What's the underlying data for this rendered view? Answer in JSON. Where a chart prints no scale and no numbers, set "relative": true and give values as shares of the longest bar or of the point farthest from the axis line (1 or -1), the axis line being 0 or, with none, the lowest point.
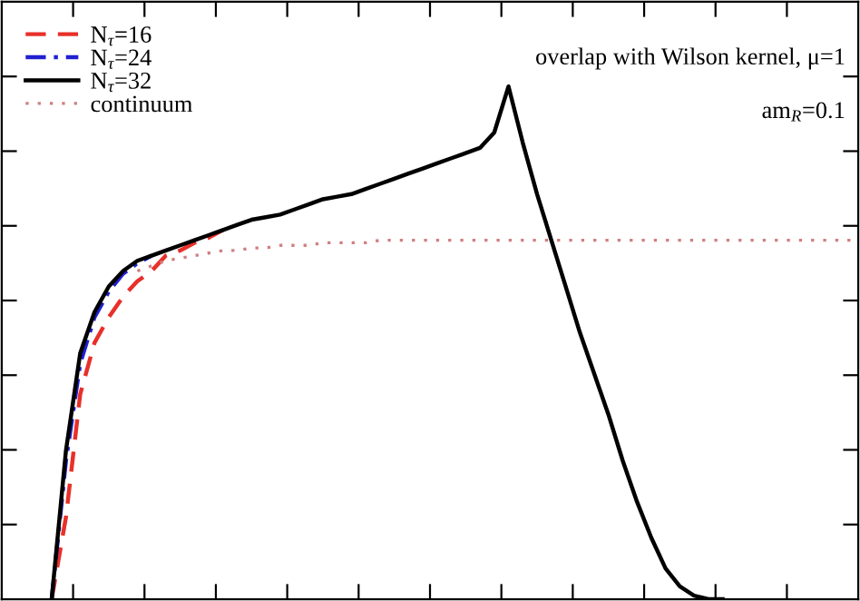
{
  "chart_data": {
    "type": "line",
    "relative": true,
    "legend": "top left",
    "grid": false,
    "categories": [
      null,
      null,
      null,
      null,
      null,
      null,
      null,
      null,
      null,
      null,
      null,
      null,
      null,
      null,
      null,
      null,
      null,
      null,
      null,
      null,
      null,
      null,
      null,
      null,
      null,
      null,
      null,
      null,
      null,
      null,
      null,
      null,
      null,
      null,
      null,
      null,
      null,
      null,
      null,
      null,
      null,
      null,
      null,
      null,
      null,
      null,
      null,
      null,
      null,
      null,
      null,
      null,
      null,
      null,
      null,
      null,
      null,
      null,
      null,
      null
    ],
    "annotations": [
      "overlap with Wilson kernel, μ=1",
      "am$_{R}$=0.1"
    ],
    "series": [
      {
        "name": "N$_{τ}$=16",
        "color": "#e8302a",
        "line_style": "dashed",
        "values": [
          null,
          null,
          null,
          0,
          0.16,
          0.4,
          0.5,
          0.55,
          0.59,
          0.62,
          0.64,
          0.67,
          0.68,
          0.695,
          0.705,
          0.72,
          null,
          null,
          null,
          null,
          null,
          null,
          null,
          null,
          null,
          null,
          null,
          null,
          null,
          null,
          null,
          null,
          null,
          null,
          null,
          null,
          null,
          null,
          null,
          null,
          null,
          null,
          null,
          null,
          null,
          null,
          null,
          null,
          null,
          null,
          null,
          null,
          null,
          null,
          null,
          null,
          null,
          null,
          null,
          null
        ]
      },
      {
        "name": "N$_{τ}$=24",
        "color": "#2020d0",
        "line_style": "dashdot",
        "values": [
          null,
          null,
          null,
          0,
          0.27,
          0.46,
          0.55,
          0.6,
          0.635,
          0.655,
          0.67,
          null,
          null,
          null,
          null,
          null,
          null,
          null,
          null,
          null,
          null,
          null,
          null,
          null,
          null,
          null,
          null,
          null,
          null,
          null,
          null,
          null,
          null,
          null,
          null,
          null,
          null,
          null,
          null,
          null,
          null,
          null,
          null,
          null,
          null,
          null,
          null,
          null,
          null,
          null,
          null,
          null,
          null,
          null,
          null,
          null,
          null,
          null,
          null,
          null
        ]
      },
      {
        "name": "N$_{τ}$=32",
        "color": "#000000",
        "line_style": "solid",
        "values": [
          null,
          null,
          null,
          0,
          0.29,
          0.48,
          0.56,
          0.61,
          0.64,
          0.66,
          0.67,
          0.68,
          0.69,
          0.7,
          0.71,
          0.72,
          0.73,
          0.74,
          0.745,
          0.75,
          0.76,
          0.77,
          0.78,
          0.785,
          0.79,
          0.8,
          0.81,
          0.82,
          0.83,
          0.84,
          0.85,
          0.86,
          0.87,
          0.88,
          0.91,
          1,
          0.89,
          0.79,
          0.7,
          0.61,
          0.52,
          0.44,
          0.36,
          0.27,
          0.19,
          0.12,
          0.06,
          0.025,
          0.007,
          0,
          0,
          null,
          null,
          null,
          null,
          null,
          null,
          null,
          null,
          null
        ]
      },
      {
        "name": "continuum",
        "color": "#d08080",
        "line_style": "dotted",
        "values": [
          null,
          null,
          null,
          null,
          null,
          null,
          null,
          null,
          null,
          0.64,
          0.65,
          0.66,
          0.665,
          0.67,
          0.675,
          0.68,
          0.68,
          0.685,
          0.685,
          0.69,
          0.69,
          0.69,
          0.695,
          0.695,
          0.695,
          0.695,
          0.7,
          0.7,
          0.7,
          0.7,
          0.7,
          0.7,
          0.7,
          0.7,
          0.7,
          0.7,
          0.7,
          0.7,
          0.7,
          0.7,
          0.7,
          0.7,
          0.7,
          0.7,
          0.7,
          0.7,
          0.7,
          0.7,
          0.7,
          0.7,
          0.7,
          0.7,
          0.7,
          0.7,
          0.7,
          0.7,
          0.7,
          0.7,
          0.7,
          0.7
        ]
      }
    ]
  }
}
